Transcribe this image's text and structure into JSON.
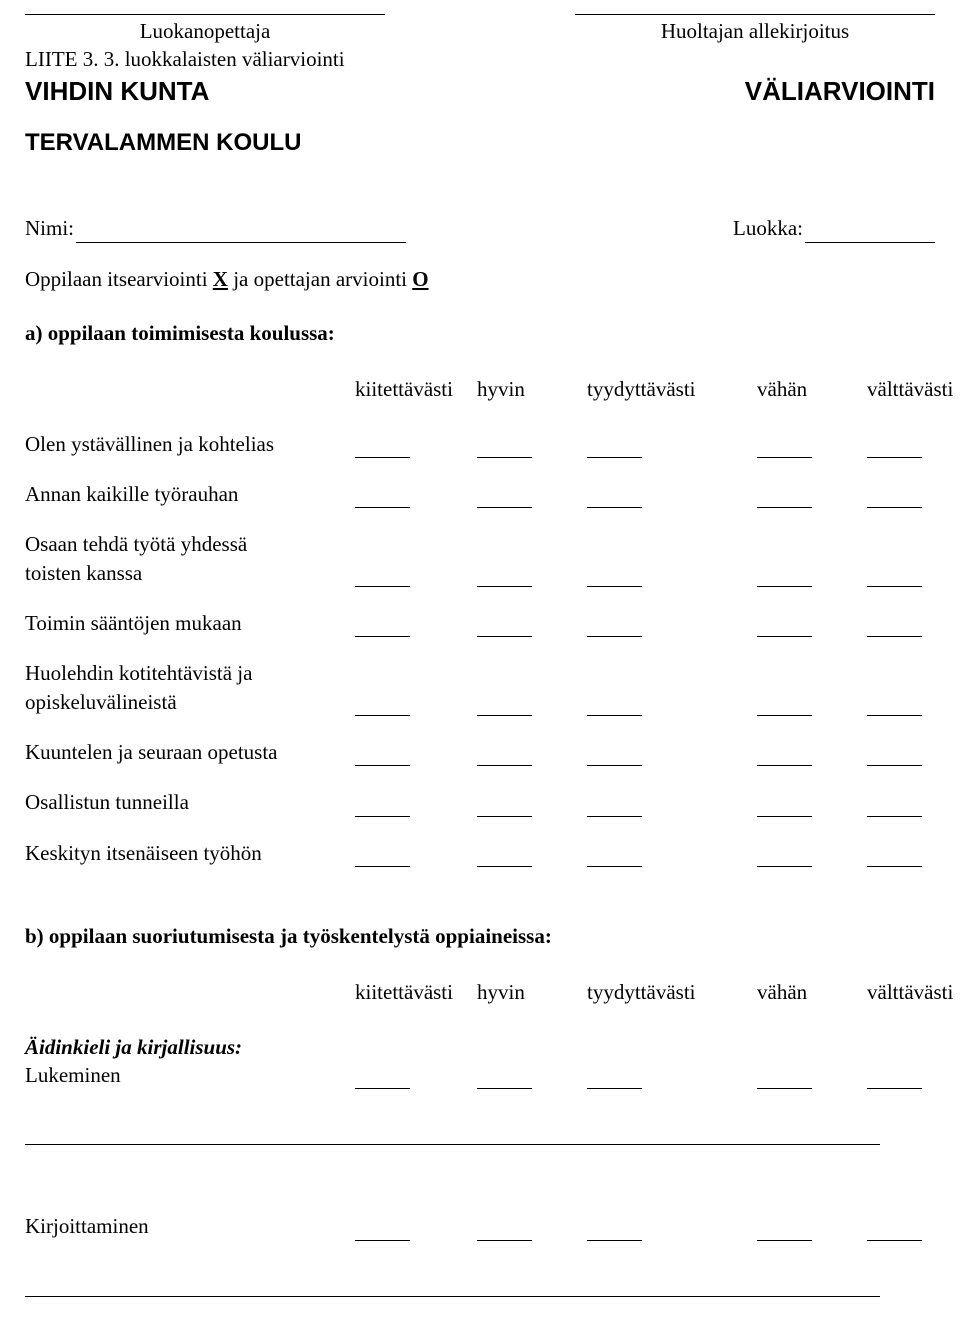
{
  "signatures": {
    "left_label": "Luokanopettaja",
    "right_label": "Huoltajan allekirjoitus"
  },
  "liite": "LIITE 3. 3. luokkalaisten väliarviointi",
  "titles": {
    "left": "VIHDIN KUNTA",
    "right": "VÄLIARVIOINTI",
    "school": "TERVALAMMEN KOULU"
  },
  "fields": {
    "nimi_label": "Nimi:",
    "luokka_label": "Luokka:"
  },
  "instruction": {
    "prefix": "Oppilaan itsearviointi ",
    "x": "X",
    "middle": " ja opettajan arviointi ",
    "o": "O"
  },
  "section_a": {
    "heading": "a) oppilaan toimimisesta koulussa:",
    "headers": [
      "kiitettävästi",
      "hyvin",
      "tyydyttävästi",
      "vähän",
      "välttävästi"
    ],
    "rows": [
      "Olen ystävällinen ja kohtelias",
      "Annan kaikille työrauhan",
      "Osaan tehdä työtä yhdessä\ntoisten kanssa",
      "Toimin sääntöjen mukaan",
      "Huolehdin kotitehtävistä ja\nopiskeluvälineistä",
      "Kuuntelen ja seuraan opetusta",
      "Osallistun tunneilla",
      "Keskityn itsenäiseen työhön"
    ]
  },
  "section_b": {
    "heading": "b) oppilaan suoriutumisesta ja työskentelystä oppiaineissa:",
    "headers": [
      "kiitettävästi",
      "hyvin",
      "tyydyttävästi",
      "vähän",
      "välttävästi"
    ],
    "subject_label": "Äidinkieli ja kirjallisuus:",
    "rows": [
      "Lukeminen",
      "Kirjoittaminen"
    ]
  }
}
